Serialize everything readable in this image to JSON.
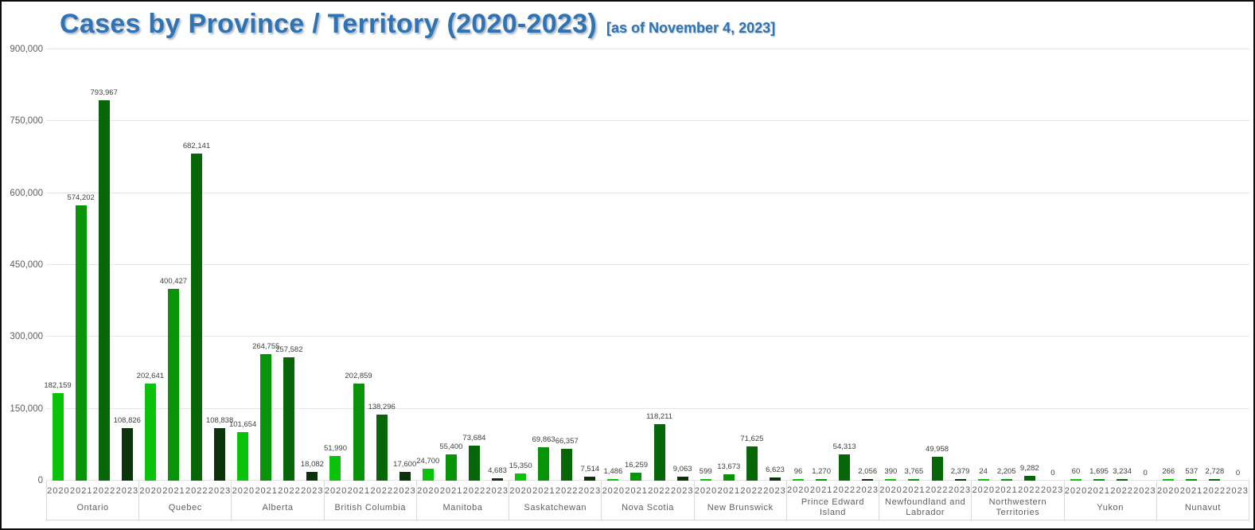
{
  "chart": {
    "title": "Cases by Province / Territory (2020-2023)",
    "subtitle": "[as of November 4, 2023]"
  },
  "chart_data": {
    "type": "bar",
    "title": "Cases by Province / Territory (2020-2023)",
    "subtitle": "[as of November 4, 2023]",
    "xlabel": "",
    "ylabel": "",
    "ylim": [
      0,
      900000
    ],
    "y_ticks": [
      "0",
      "150,000",
      "300,000",
      "450,000",
      "600,000",
      "750,000",
      "900,000"
    ],
    "grid": true,
    "legend_position": "none",
    "value_labels": true,
    "categories": [
      "Ontario",
      "Quebec",
      "Alberta",
      "British Columbia",
      "Manitoba",
      "Saskatchewan",
      "Nova Scotia",
      "New Brunswick",
      "Prince Edward Island",
      "Newfoundland and Labrador",
      "Northwestern Territories",
      "Yukon",
      "Nunavut"
    ],
    "series": [
      {
        "name": "2020",
        "color": "#0cc30c",
        "values": [
          182159,
          202641,
          101654,
          51990,
          24700,
          15350,
          1486,
          599,
          96,
          390,
          24,
          60,
          266
        ]
      },
      {
        "name": "2021",
        "color": "#099309",
        "values": [
          574202,
          400427,
          264755,
          202859,
          55400,
          69863,
          16259,
          13673,
          1270,
          3765,
          2205,
          1695,
          537
        ]
      },
      {
        "name": "2022",
        "color": "#076607",
        "values": [
          793967,
          682141,
          257582,
          138296,
          73684,
          66357,
          118211,
          71625,
          54313,
          49958,
          9282,
          3234,
          2728
        ]
      },
      {
        "name": "2023",
        "color": "#0b340b",
        "values": [
          108826,
          108838,
          18082,
          17600,
          4683,
          7514,
          9063,
          6623,
          2056,
          2379,
          0,
          0,
          0
        ]
      }
    ],
    "colors": {
      "title_blue": "#2e74b5",
      "gridline": "#e4e4e4",
      "axis_text": "#605e5c",
      "value_text": "#404040",
      "frame_border": "#0d0d0d"
    }
  }
}
